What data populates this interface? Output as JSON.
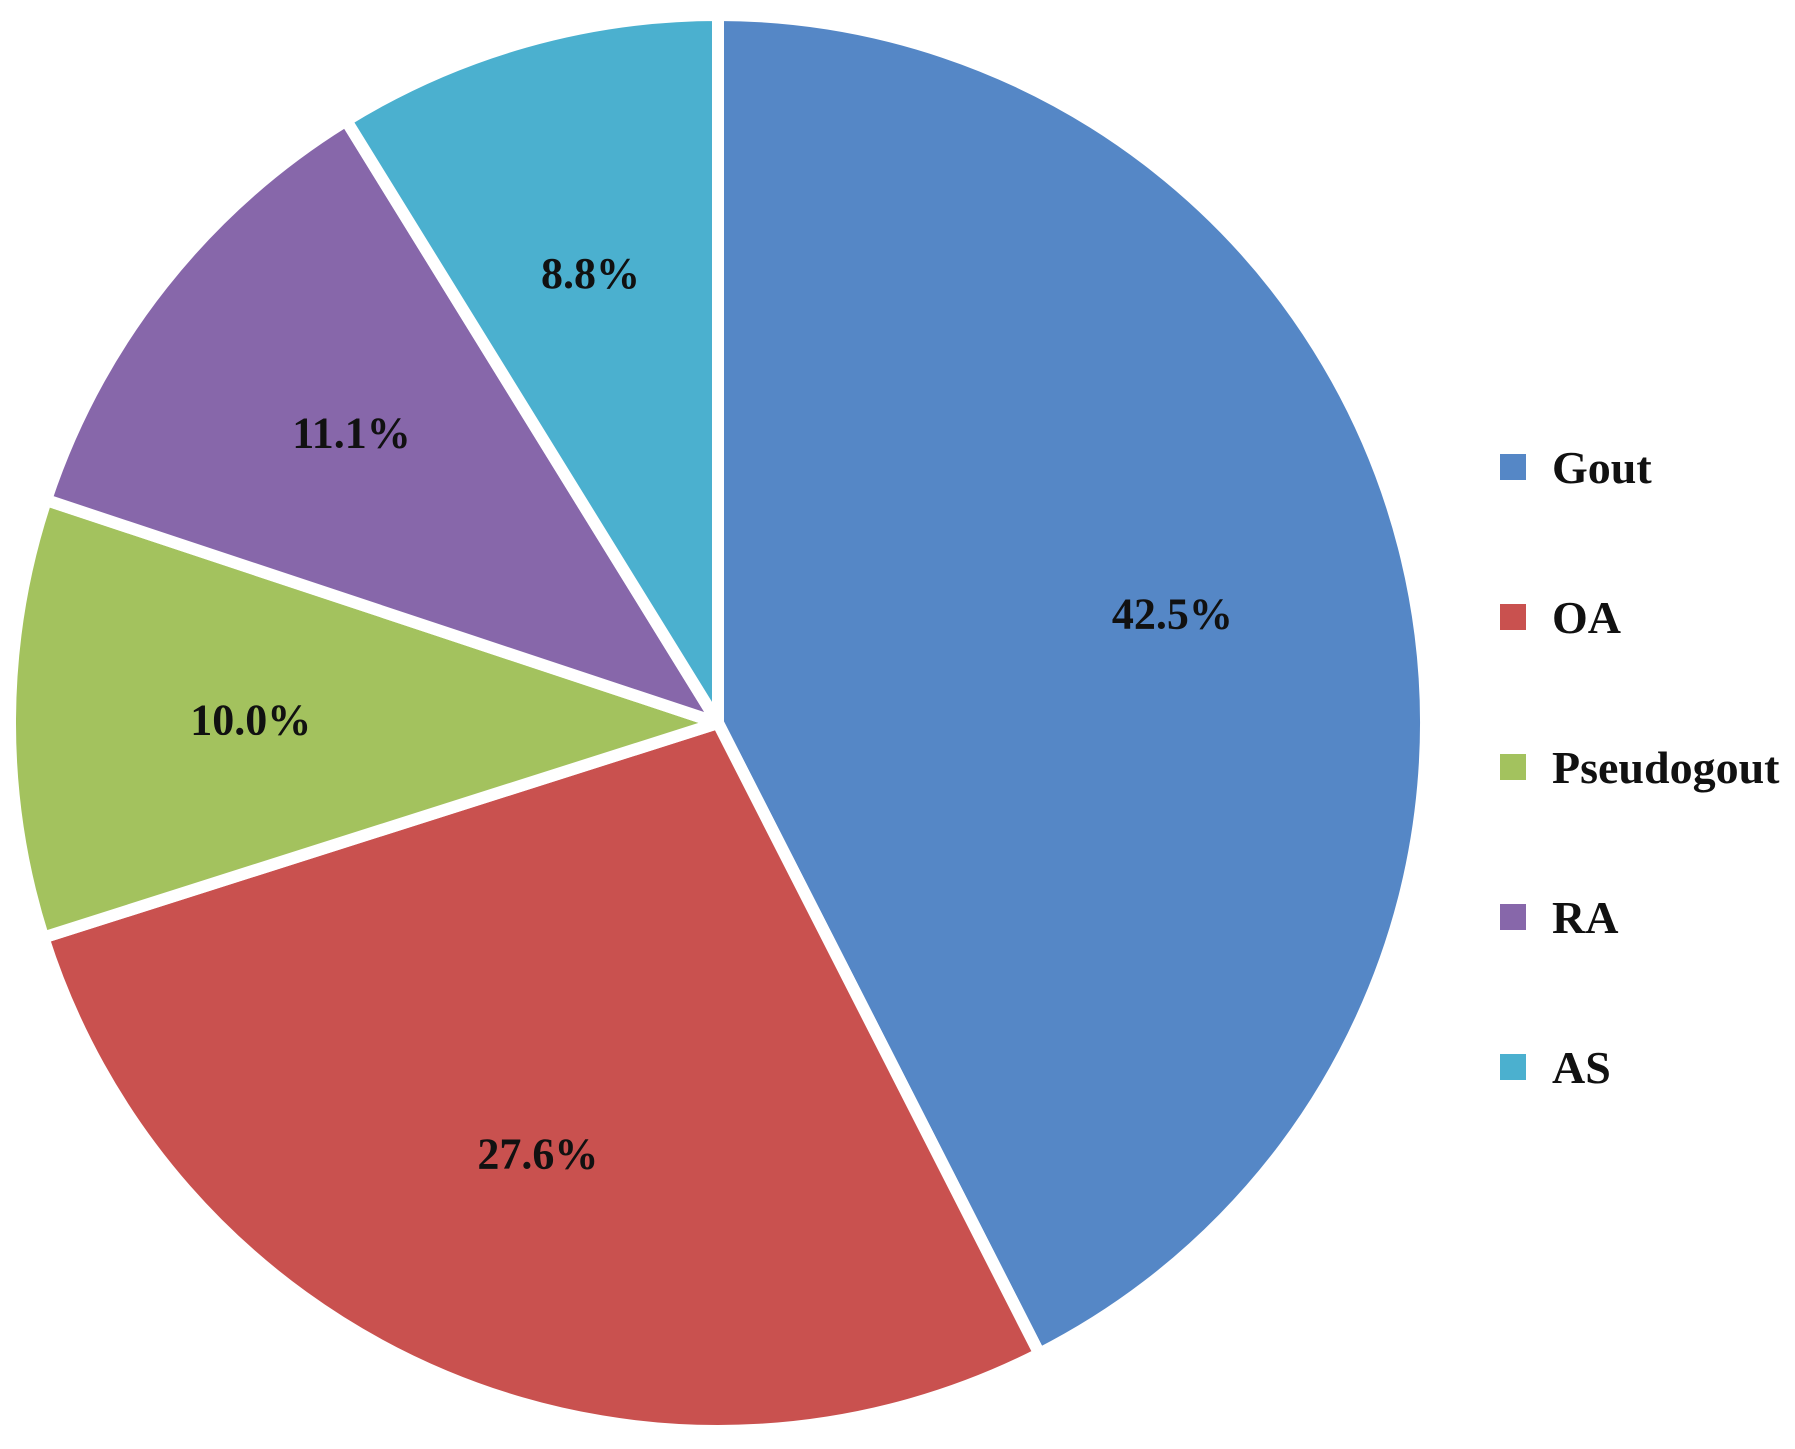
{
  "chart_data": {
    "type": "pie",
    "title": "",
    "start_angle_deg": 0,
    "direction": "clockwise",
    "slices": [
      {
        "name": "Gout",
        "value": 42.5,
        "label": "42.5%",
        "color": "#5587C6"
      },
      {
        "name": "OA",
        "value": 27.6,
        "label": "27.6%",
        "color": "#C9514F"
      },
      {
        "name": "Pseudogout",
        "value": 10.0,
        "label": "10.0%",
        "color": "#A3C25E"
      },
      {
        "name": "RA",
        "value": 11.1,
        "label": "11.1%",
        "color": "#8767AA"
      },
      {
        "name": "AS",
        "value": 8.8,
        "label": "8.8%",
        "color": "#4BB0CF"
      }
    ],
    "legend": {
      "position": "right",
      "entries": [
        {
          "label": "Gout",
          "color": "#5587C6"
        },
        {
          "label": "OA",
          "color": "#C9514F"
        },
        {
          "label": "Pseudogout",
          "color": "#A3C25E"
        },
        {
          "label": "RA",
          "color": "#8767AA"
        },
        {
          "label": "AS",
          "color": "#4BB0CF"
        }
      ]
    }
  }
}
